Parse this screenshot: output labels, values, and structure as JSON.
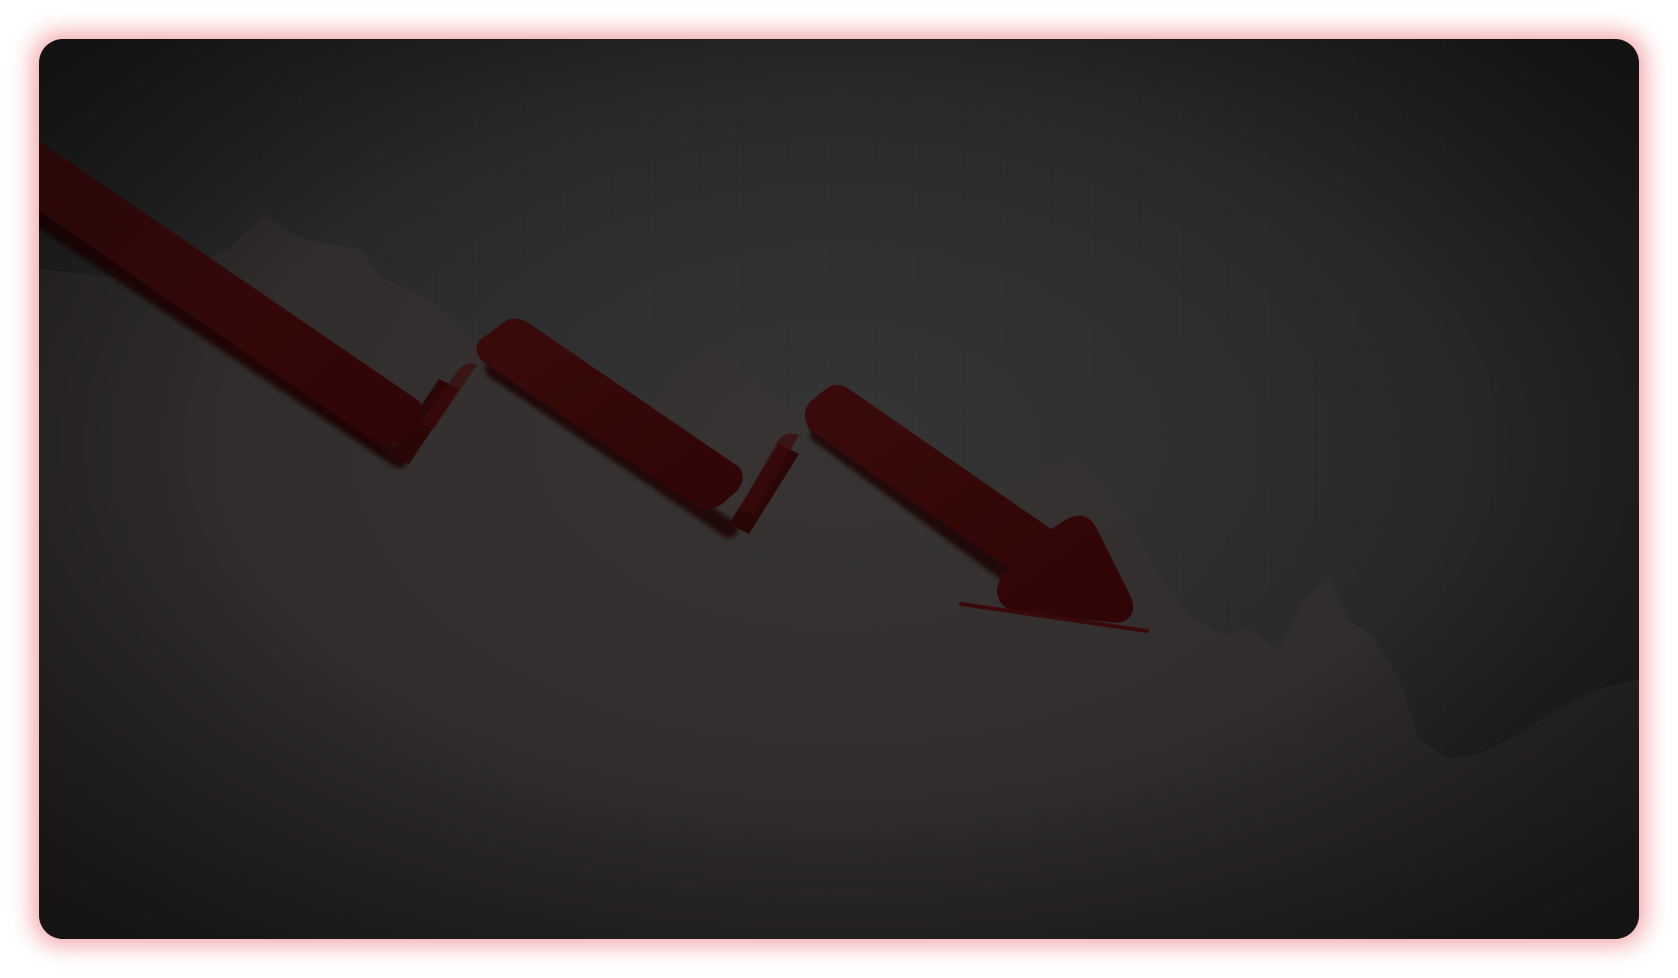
{
  "scene": {
    "name": "downtrend-arrow-graphic",
    "colors": {
      "page_background": "#ffffff",
      "glow": "#e85a5a",
      "panel_dark": "#1a1a1a",
      "panel_light": "#353535",
      "mountain": "#3a3230",
      "arrow_dark": "#350808",
      "arrow_mid": "#2a0606",
      "arrow_shadow": "#1c0404",
      "baseline": "#3a0a0a"
    },
    "icon": "downward-trend-arrow-icon"
  }
}
